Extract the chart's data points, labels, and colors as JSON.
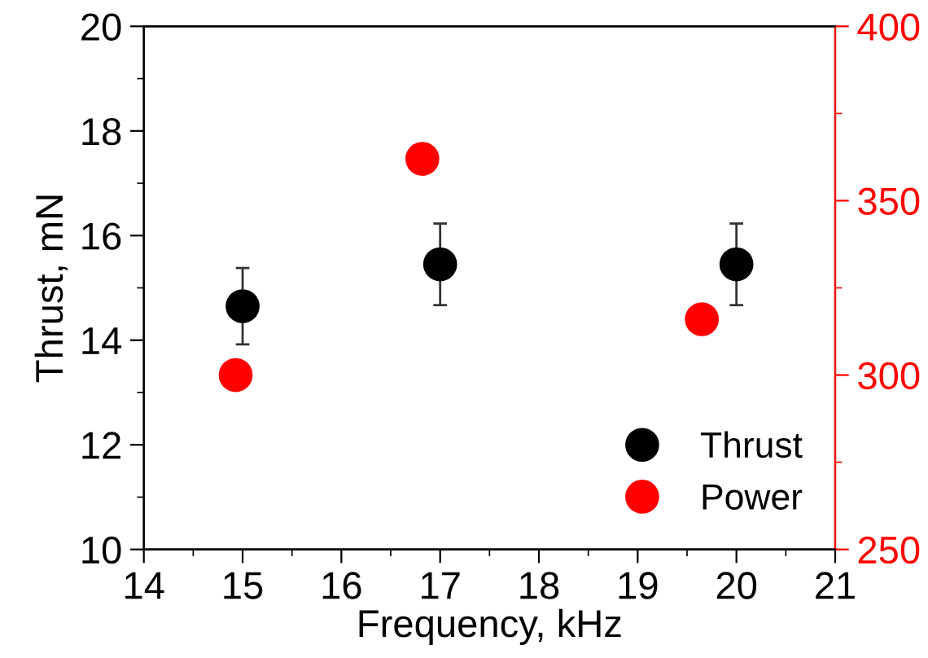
{
  "chart_data": {
    "type": "scatter",
    "xlabel": "Frequency, kHz",
    "ylabel": "Thrust, mN",
    "xlim": [
      14,
      21
    ],
    "xticks": [
      14,
      15,
      16,
      17,
      18,
      19,
      20,
      21
    ],
    "ylim": [
      10,
      20
    ],
    "yticks": [
      10,
      12,
      14,
      16,
      18,
      20
    ],
    "y2lim": [
      250,
      400
    ],
    "y2ticks": [
      250,
      300,
      350,
      400
    ],
    "marker": "circle",
    "legend": "bottom right",
    "grid": false,
    "series": [
      {
        "name": "Thrust",
        "color": "#000000",
        "x": [
          15,
          17,
          20
        ],
        "values": [
          14.65,
          15.45,
          15.45
        ],
        "errors": [
          0.73,
          0.78,
          0.78
        ]
      },
      {
        "name": "Power",
        "color": "#ff0000",
        "axis": "y2",
        "x": [
          14.93,
          16.82,
          19.65
        ],
        "values": [
          300,
          362,
          316
        ]
      }
    ]
  }
}
